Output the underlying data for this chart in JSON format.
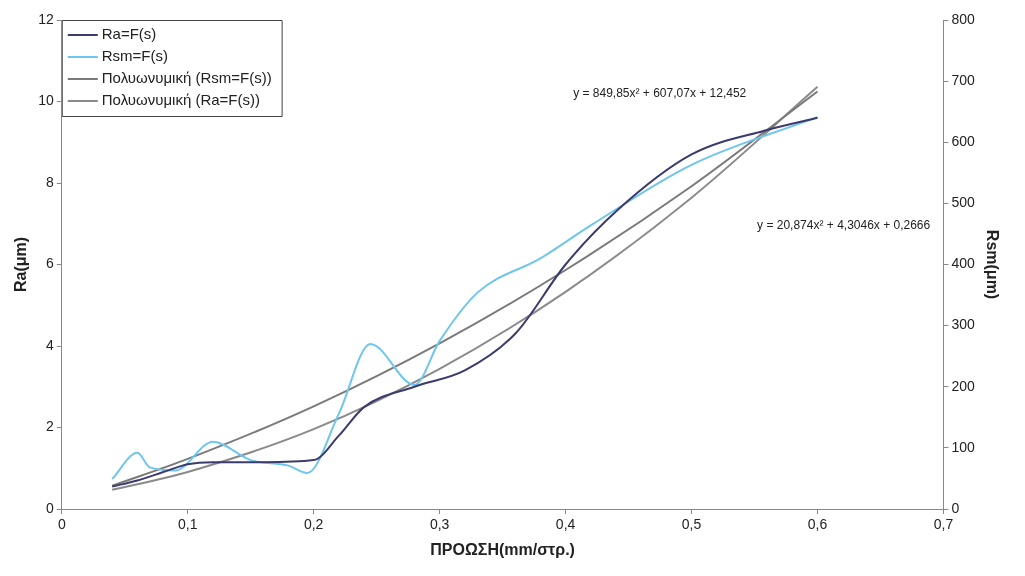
{
  "chart_data": {
    "type": "line",
    "xlabel": "ΠΡΟΩΣΗ(mm/στρ.)",
    "ylabel": "Ra(μm)",
    "y2label": "Rsm(μm)",
    "xlim": [
      0,
      0.7
    ],
    "xticks": [
      0,
      {
        "value": 0.1,
        "label": "0,1"
      },
      {
        "value": 0.2,
        "label": "0,2"
      },
      {
        "value": 0.3,
        "label": "0,3"
      },
      {
        "value": 0.4,
        "label": "0,4"
      },
      {
        "value": 0.5,
        "label": "0,5"
      },
      {
        "value": 0.6,
        "label": "0,6"
      },
      {
        "value": 0.7,
        "label": "0,7"
      }
    ],
    "ylim": [
      0,
      12
    ],
    "yticks": [
      0,
      2,
      4,
      6,
      8,
      10,
      12
    ],
    "y2lim": [
      0,
      800
    ],
    "y2ticks": [
      0,
      100,
      200,
      300,
      400,
      500,
      600,
      700,
      800
    ],
    "grid": false,
    "legend": "top left",
    "marker": "none",
    "line_style": "solid",
    "series": [
      {
        "name": "Ra=F(s)",
        "color": "#3b3b6e",
        "x": [
          0.04,
          0.06,
          0.08,
          0.1,
          0.12,
          0.16,
          0.2,
          0.22,
          0.24,
          0.28,
          0.32,
          0.36,
          0.4,
          0.44,
          0.5,
          0.56,
          0.6
        ],
        "values": [
          0.55,
          0.7,
          0.9,
          1.1,
          1.15,
          1.15,
          1.2,
          1.8,
          2.5,
          3.0,
          3.4,
          4.3,
          6.0,
          7.3,
          8.7,
          9.3,
          9.6
        ]
      },
      {
        "name": "Rsm=F(s)",
        "color": "#6ec6ee",
        "axis": "y2",
        "x": [
          0.04,
          0.06,
          0.07,
          0.09,
          0.12,
          0.15,
          0.18,
          0.195,
          0.22,
          0.245,
          0.28,
          0.3,
          0.33,
          0.38,
          0.42,
          0.5,
          0.6
        ],
        "values": [
          49,
          92,
          68,
          63,
          110,
          80,
          71,
          59,
          156,
          270,
          203,
          275,
          354,
          410,
          464,
          563,
          641
        ]
      },
      {
        "name": "Πολυωνυμική (Rsm=F(s))",
        "color": "#7a7a7a",
        "axis": "y2",
        "x": [
          0.04,
          0.1,
          0.2,
          0.3,
          0.4,
          0.5,
          0.6
        ],
        "values": [
          38,
          82,
          168,
          271,
          391,
          528,
          683
        ]
      },
      {
        "name": "Πολυωνυμική (Ra=F(s))",
        "color": "#8a8a8a",
        "x": [
          0.04,
          0.1,
          0.2,
          0.3,
          0.4,
          0.5,
          0.6
        ],
        "values": [
          0.47,
          0.91,
          1.96,
          3.44,
          5.33,
          7.64,
          10.36
        ]
      }
    ],
    "annotations": [
      "y = 849,85x² + 607,07x + 12,452",
      "y = 20,874x² + 4,3046x + 0,2666"
    ]
  }
}
